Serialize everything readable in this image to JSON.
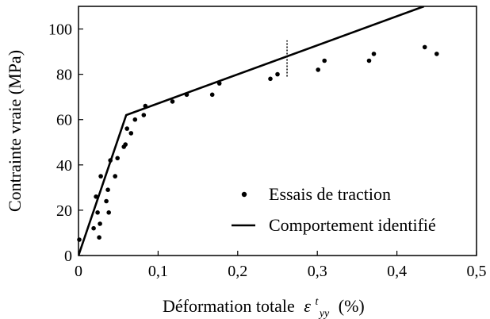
{
  "chart_data": {
    "type": "scatter",
    "xlabel": "Déformation totale",
    "xlabel_symbol": "ε",
    "xlabel_sup": "t",
    "xlabel_sub": "yy",
    "xlabel_unit": "(%)",
    "ylabel": "Contrainte vraie (MPa)",
    "xlim": [
      0,
      0.5
    ],
    "ylim": [
      0,
      110
    ],
    "x_ticks": [
      "0",
      "0,1",
      "0,2",
      "0,3",
      "0,4",
      "0,5"
    ],
    "x_tick_values": [
      0,
      0.1,
      0.2,
      0.3,
      0.4,
      0.5
    ],
    "y_ticks": [
      "0",
      "20",
      "40",
      "60",
      "80",
      "100"
    ],
    "y_tick_values": [
      0,
      20,
      40,
      60,
      80,
      100
    ],
    "grid": false,
    "legend_position": "center-right",
    "series": [
      {
        "name": "Essais de traction",
        "kind": "scatter",
        "marker": "dot",
        "color": "#000000",
        "points": [
          [
            0.001,
            7
          ],
          [
            0.019,
            12
          ],
          [
            0.022,
            26
          ],
          [
            0.024,
            19
          ],
          [
            0.026,
            8
          ],
          [
            0.027,
            14
          ],
          [
            0.028,
            35
          ],
          [
            0.035,
            24
          ],
          [
            0.037,
            29
          ],
          [
            0.038,
            19
          ],
          [
            0.04,
            42
          ],
          [
            0.046,
            35
          ],
          [
            0.049,
            43
          ],
          [
            0.057,
            48
          ],
          [
            0.059,
            49
          ],
          [
            0.061,
            56
          ],
          [
            0.066,
            54
          ],
          [
            0.071,
            60
          ],
          [
            0.082,
            62
          ],
          [
            0.084,
            66
          ],
          [
            0.118,
            68
          ],
          [
            0.136,
            71
          ],
          [
            0.168,
            71
          ],
          [
            0.177,
            76
          ],
          [
            0.241,
            78
          ],
          [
            0.25,
            80
          ],
          [
            0.301,
            82
          ],
          [
            0.309,
            86
          ],
          [
            0.365,
            86
          ],
          [
            0.371,
            89
          ],
          [
            0.435,
            92
          ],
          [
            0.45,
            89
          ]
        ]
      },
      {
        "name": "Comportement identifié",
        "kind": "line",
        "color": "#000000",
        "points": [
          [
            0,
            0
          ],
          [
            0.06,
            62
          ],
          [
            0.434,
            110
          ]
        ]
      }
    ],
    "annotations": [
      {
        "kind": "dotted-vertical",
        "x": 0.262,
        "y_range": [
          79,
          95
        ]
      }
    ]
  }
}
